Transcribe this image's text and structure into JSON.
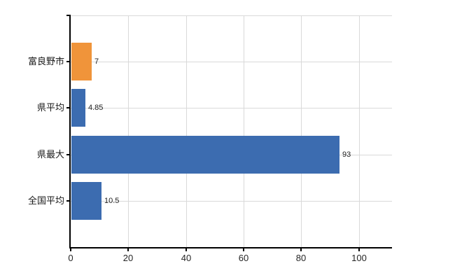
{
  "chart_data": {
    "type": "bar",
    "orientation": "horizontal",
    "title": "",
    "xlabel": "",
    "ylabel": "",
    "categories": [
      "富良野市",
      "県平均",
      "県最大",
      "全国平均"
    ],
    "values": [
      7,
      4.85,
      93,
      10.5
    ],
    "value_labels": [
      "7",
      "4.85",
      "93",
      "10.5"
    ],
    "bar_colors": [
      "#f0943a",
      "#3c6cb0",
      "#3c6cb0",
      "#3c6cb0"
    ],
    "x_ticks": [
      0,
      20,
      40,
      60,
      80,
      100
    ],
    "x_tick_labels": [
      "0",
      "20",
      "40",
      "60",
      "80",
      "100"
    ],
    "xlim": [
      0,
      111.5
    ],
    "grid": true,
    "grid_horizontal": true,
    "grid_vertical": true,
    "legend": false
  },
  "colors": {
    "background": "#ffffff",
    "axis": "#000000",
    "grid": "#d9d9d9",
    "highlight_bar": "#f0943a",
    "default_bar": "#3c6cb0",
    "label_text": "#1a1a1a",
    "value_text": "#1f1f1f"
  }
}
